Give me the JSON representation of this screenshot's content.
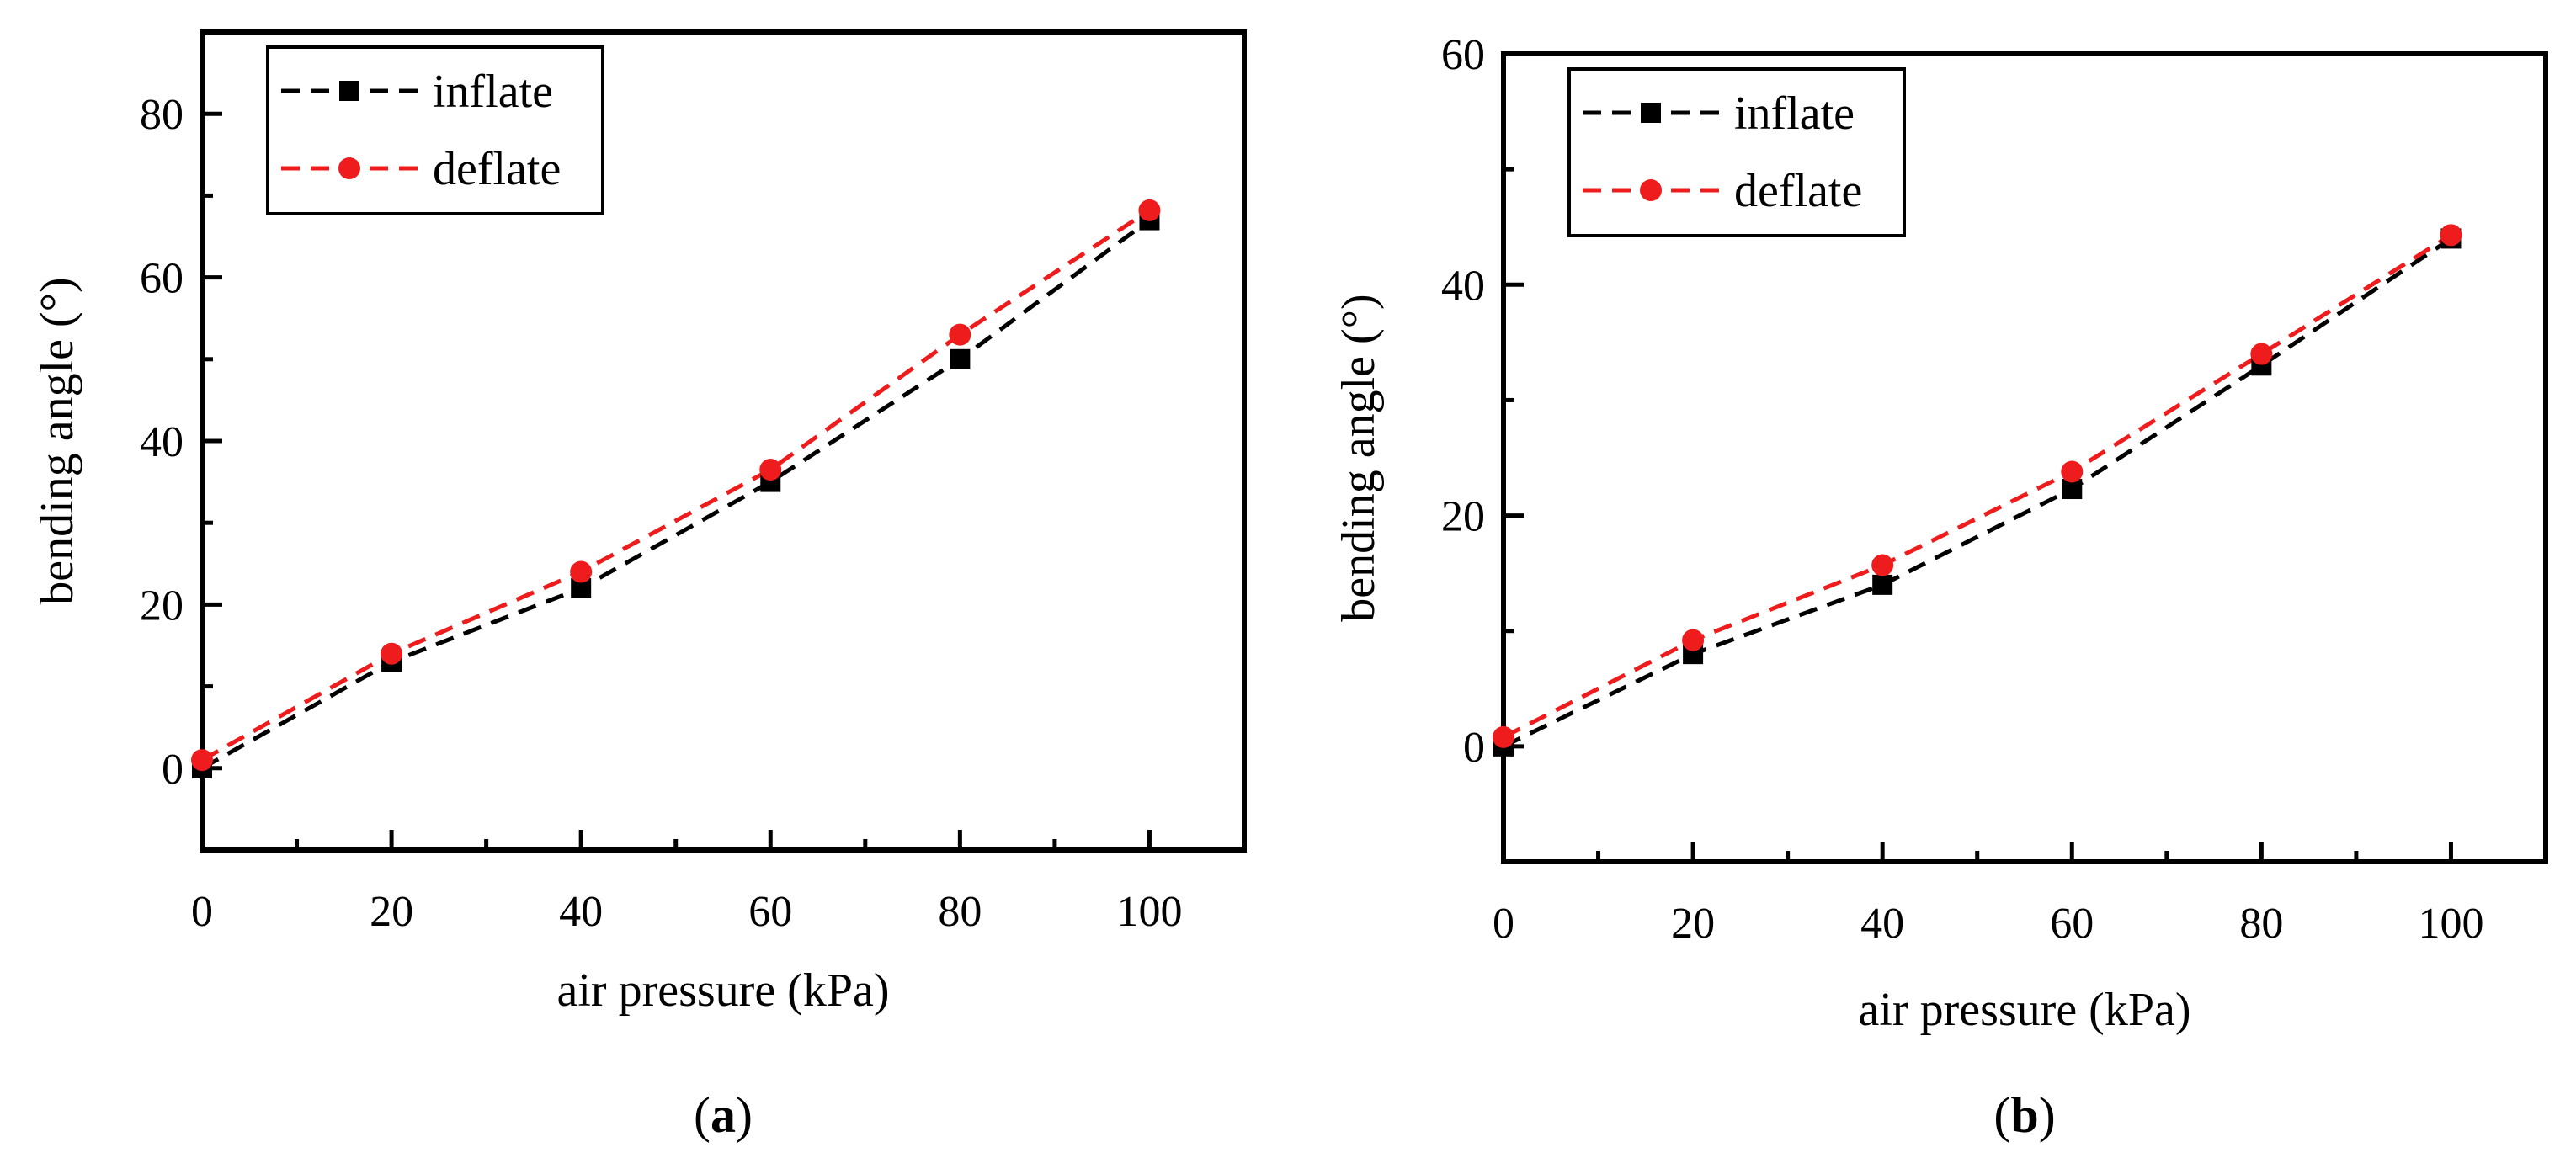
{
  "chart_data": [
    {
      "type": "line",
      "panel_label": "a",
      "title": "",
      "xlabel": "air pressure (kPa)",
      "ylabel": "bending angle (°)",
      "xlim": [
        0,
        110
      ],
      "ylim": [
        -10,
        90
      ],
      "x_ticks": [
        0,
        20,
        40,
        60,
        80,
        100
      ],
      "x_tick_labels": [
        "0",
        "20",
        "40",
        "60",
        "80",
        "100"
      ],
      "x_minor_ticks": [
        10,
        30,
        50,
        70,
        90
      ],
      "y_ticks": [
        0,
        20,
        40,
        60,
        80
      ],
      "y_tick_labels": [
        "0",
        "20",
        "40",
        "60",
        "80"
      ],
      "y_minor_ticks": [
        10,
        30,
        50,
        70
      ],
      "grid": false,
      "legend_position": "top-left",
      "x": [
        0,
        20,
        40,
        60,
        80,
        100
      ],
      "series": [
        {
          "name": "inflate",
          "color": "#000000",
          "marker": "square",
          "line_style": "dashed",
          "values": [
            0,
            13,
            22,
            35,
            50,
            67
          ]
        },
        {
          "name": "deflate",
          "color": "#ee1c1c",
          "marker": "circle",
          "line_style": "dashed",
          "values": [
            1,
            14,
            24,
            36.5,
            53,
            68.2
          ]
        }
      ]
    },
    {
      "type": "line",
      "panel_label": "b",
      "title": "",
      "xlabel": "air pressure (kPa)",
      "ylabel": "bending angle (°)",
      "xlim": [
        0,
        110
      ],
      "ylim": [
        -10,
        60
      ],
      "x_ticks": [
        0,
        20,
        40,
        60,
        80,
        100
      ],
      "x_tick_labels": [
        "0",
        "20",
        "40",
        "60",
        "80",
        "100"
      ],
      "x_minor_ticks": [
        10,
        30,
        50,
        70,
        90
      ],
      "y_ticks": [
        0,
        20,
        40,
        60
      ],
      "y_tick_labels": [
        "0",
        "20",
        "40",
        "60"
      ],
      "y_minor_ticks": [
        10,
        30,
        50
      ],
      "grid": false,
      "legend_position": "top-left",
      "x": [
        0,
        20,
        40,
        60,
        80,
        100
      ],
      "series": [
        {
          "name": "inflate",
          "color": "#000000",
          "marker": "square",
          "line_style": "dashed",
          "values": [
            0,
            8,
            14,
            22.3,
            33,
            44
          ]
        },
        {
          "name": "deflate",
          "color": "#ee1c1c",
          "marker": "circle",
          "line_style": "dashed",
          "values": [
            0.8,
            9.2,
            15.7,
            23.8,
            34,
            44.3
          ]
        }
      ]
    }
  ]
}
